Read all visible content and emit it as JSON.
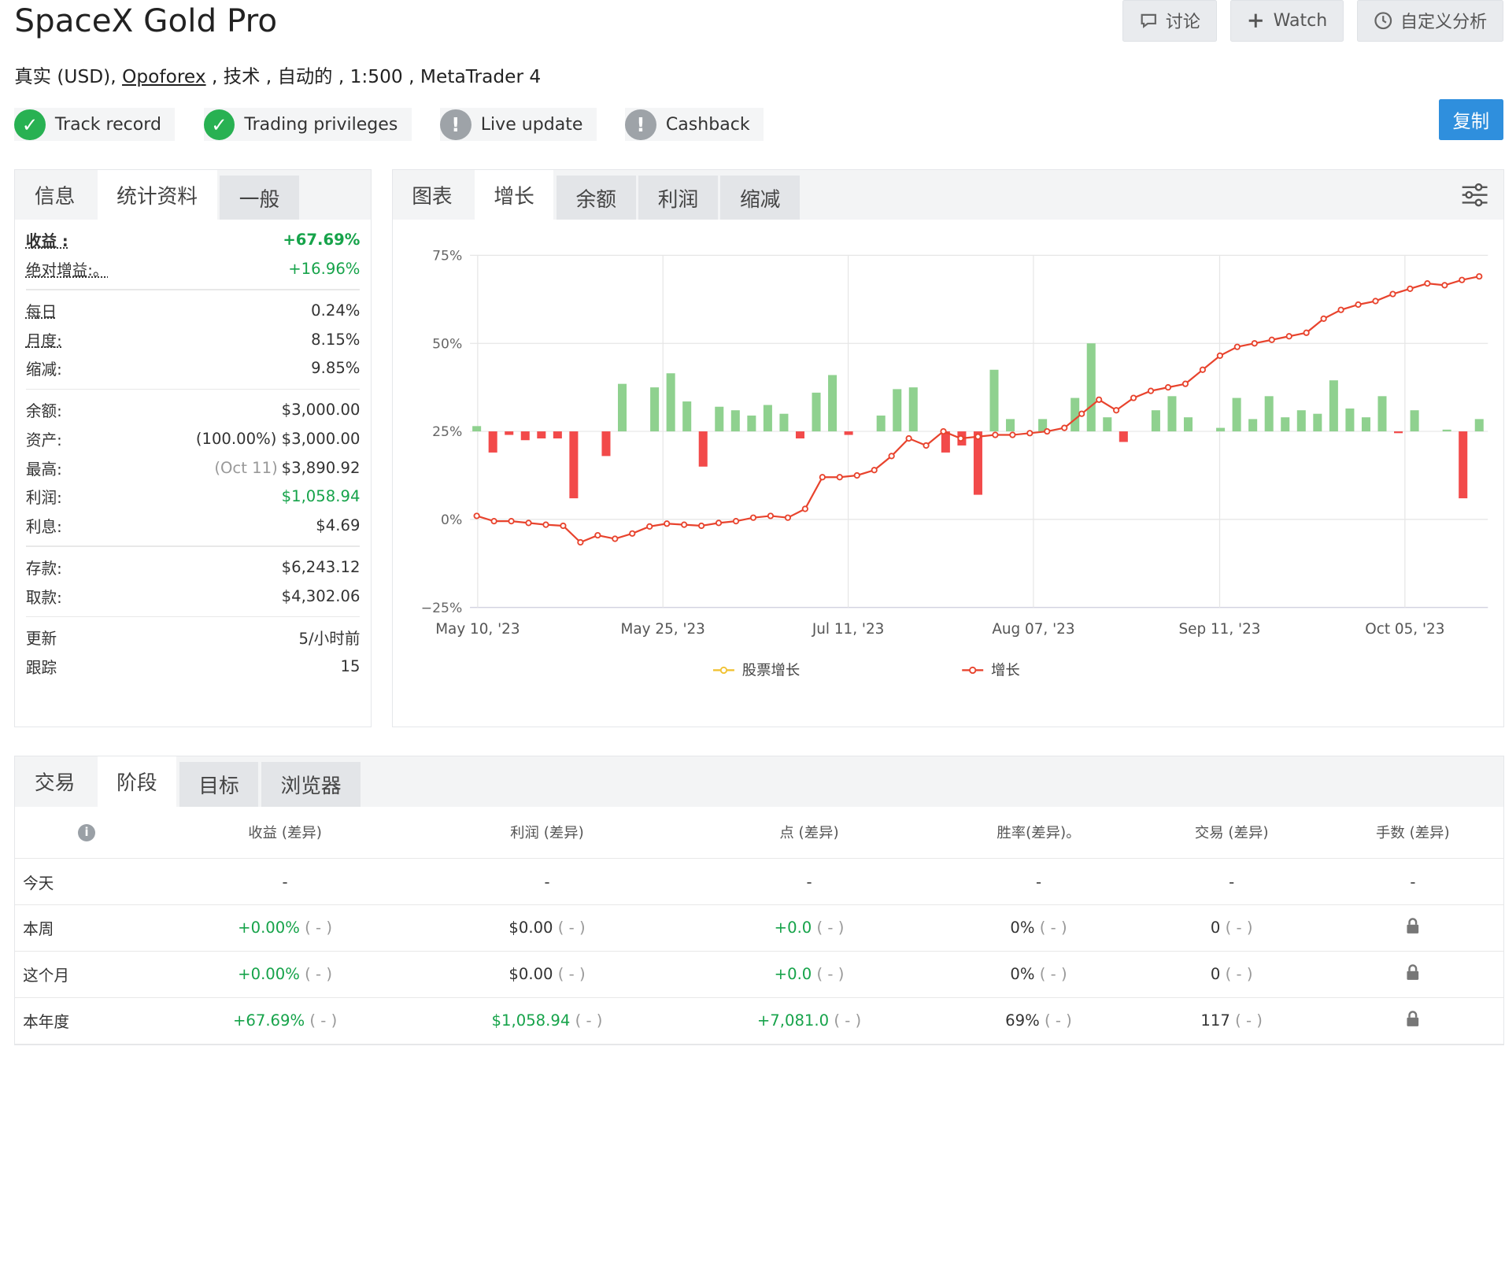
{
  "header": {
    "title": "SpaceX Gold Pro",
    "subtitle_prefix": "真实 (USD), ",
    "broker": "Opoforex",
    "subtitle_suffix": " , 技术 , 自动的 , 1:500 , MetaTrader 4",
    "actions": {
      "discuss": "讨论",
      "watch": "Watch",
      "custom": "自定义分析"
    },
    "copy": "复制"
  },
  "badges": [
    {
      "label": "Track record",
      "status": "ok"
    },
    {
      "label": "Trading privileges",
      "status": "ok"
    },
    {
      "label": "Live update",
      "status": "warn"
    },
    {
      "label": "Cashback",
      "status": "warn"
    }
  ],
  "left_tabs": [
    "信息",
    "统计资料",
    "一般"
  ],
  "stats": {
    "gain": {
      "label": "收益 :",
      "value": "+67.69%"
    },
    "abs_gain": {
      "label": "绝对增益:。",
      "value": "+16.96%"
    },
    "daily": {
      "label": "每日",
      "value": "0.24%"
    },
    "monthly": {
      "label": "月度:",
      "value": "8.15%"
    },
    "drawdown": {
      "label": "缩减:",
      "value": "9.85%"
    },
    "balance": {
      "label": "余额:",
      "value": "$3,000.00"
    },
    "equity": {
      "label": "资产:",
      "note": "(100.00%)",
      "value": "$3,000.00"
    },
    "highest": {
      "label": "最高:",
      "note": "(Oct 11)",
      "value": "$3,890.92"
    },
    "profit": {
      "label": "利润:",
      "value": "$1,058.94"
    },
    "interest": {
      "label": "利息:",
      "value": "$4.69"
    },
    "deposits": {
      "label": "存款:",
      "value": "$6,243.12"
    },
    "withdrawals": {
      "label": "取款:",
      "value": "$4,302.06"
    },
    "updated": {
      "label": "更新",
      "value": "5/小时前"
    },
    "tracking": {
      "label": "跟踪",
      "value": "15"
    }
  },
  "chart_tabs": [
    "图表",
    "增长",
    "余额",
    "利润",
    "缩减"
  ],
  "chart_data": {
    "type": "line",
    "y_ticks": [
      "75%",
      "50%",
      "25%",
      "0%",
      "−25%"
    ],
    "ylim": [
      -25,
      75
    ],
    "x_ticks": [
      "May 10, '23",
      "May 25, '23",
      "Jul 11, '23",
      "Aug 07, '23",
      "Sep 11, '23",
      "Oct 05, '23"
    ],
    "legend": [
      "股票增长",
      "增长"
    ],
    "growth": [
      1,
      -0.5,
      -0.5,
      -1,
      -1.5,
      -1.8,
      -6.5,
      -4.5,
      -5.5,
      -4,
      -2,
      -1.2,
      -1.5,
      -1.8,
      -1,
      -0.5,
      0.5,
      1,
      0.5,
      3,
      12,
      12,
      12.5,
      14,
      18,
      23,
      21,
      25,
      23,
      23.5,
      24,
      24,
      24.5,
      25,
      26,
      30,
      34,
      31,
      34.5,
      36.5,
      37.5,
      38.5,
      42.5,
      46.5,
      49,
      50,
      51,
      52,
      53,
      57,
      59.5,
      61,
      62,
      64,
      65.5,
      67,
      66.5,
      68,
      69
    ],
    "bars": [
      1.5,
      -6,
      -1,
      -2.5,
      -2,
      -2,
      -19,
      0,
      -7,
      13.5,
      0,
      12.5,
      16.5,
      8.5,
      -10,
      7,
      6,
      4.5,
      7.5,
      5,
      -2,
      11,
      16,
      -1,
      0,
      4.5,
      12,
      12.5,
      0,
      -6,
      -4,
      -18,
      17.5,
      3.5,
      0,
      3.5,
      0,
      9.5,
      25,
      4,
      -3,
      0,
      6,
      10,
      4,
      0,
      1,
      9.5,
      3.5,
      10,
      4,
      6,
      5,
      14.5,
      6.5,
      4,
      10,
      -0.5,
      6,
      0,
      0.5,
      -19,
      3.5
    ]
  },
  "bottom_tabs": [
    "交易",
    "阶段",
    "目标",
    "浏览器"
  ],
  "periods": {
    "headers": [
      "收益 (差异)",
      "利润 (差异)",
      "点 (差异)",
      "胜率(差异)。",
      "交易 (差异)",
      "手数 (差异)"
    ],
    "rows": [
      {
        "label": "今天",
        "gain": "-",
        "profit": "-",
        "pips": "-",
        "win": "-",
        "trades": "-",
        "lots": "-"
      },
      {
        "label": "本周",
        "gain": "+0.00%",
        "profit": "$0.00",
        "pips": "+0.0",
        "win": "0%",
        "trades": "0",
        "lots": "lock"
      },
      {
        "label": "这个月",
        "gain": "+0.00%",
        "profit": "$0.00",
        "pips": "+0.0",
        "win": "0%",
        "trades": "0",
        "lots": "lock"
      },
      {
        "label": "本年度",
        "gain": "+67.69%",
        "profit": "$1,058.94",
        "pips": "+7,081.0",
        "win": "69%",
        "trades": "117",
        "lots": "lock"
      }
    ],
    "diff": "( - )"
  }
}
